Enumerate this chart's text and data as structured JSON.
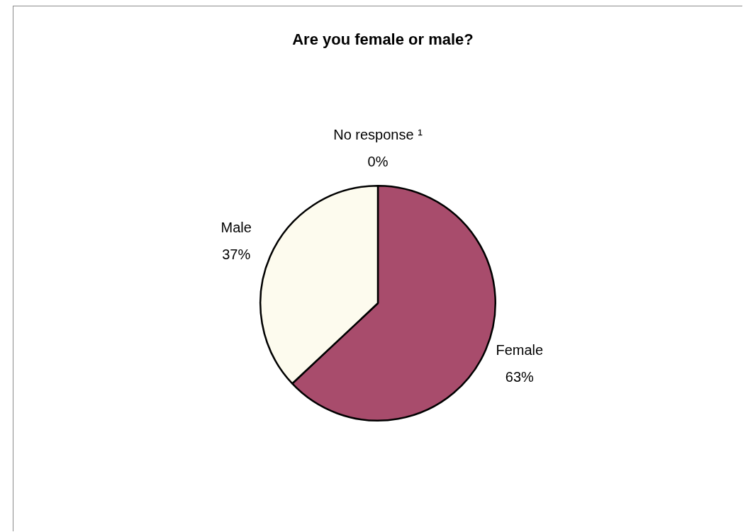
{
  "chart_data": {
    "type": "pie",
    "title": "Are you female or male?",
    "categories": [
      "No response ¹",
      "Female",
      "Male"
    ],
    "values": [
      0,
      63,
      37
    ],
    "colors": [
      "#000000",
      "#a84c6c",
      "#fdfbee"
    ],
    "value_labels": [
      "0%",
      "63%",
      "37%"
    ],
    "legend": false
  }
}
